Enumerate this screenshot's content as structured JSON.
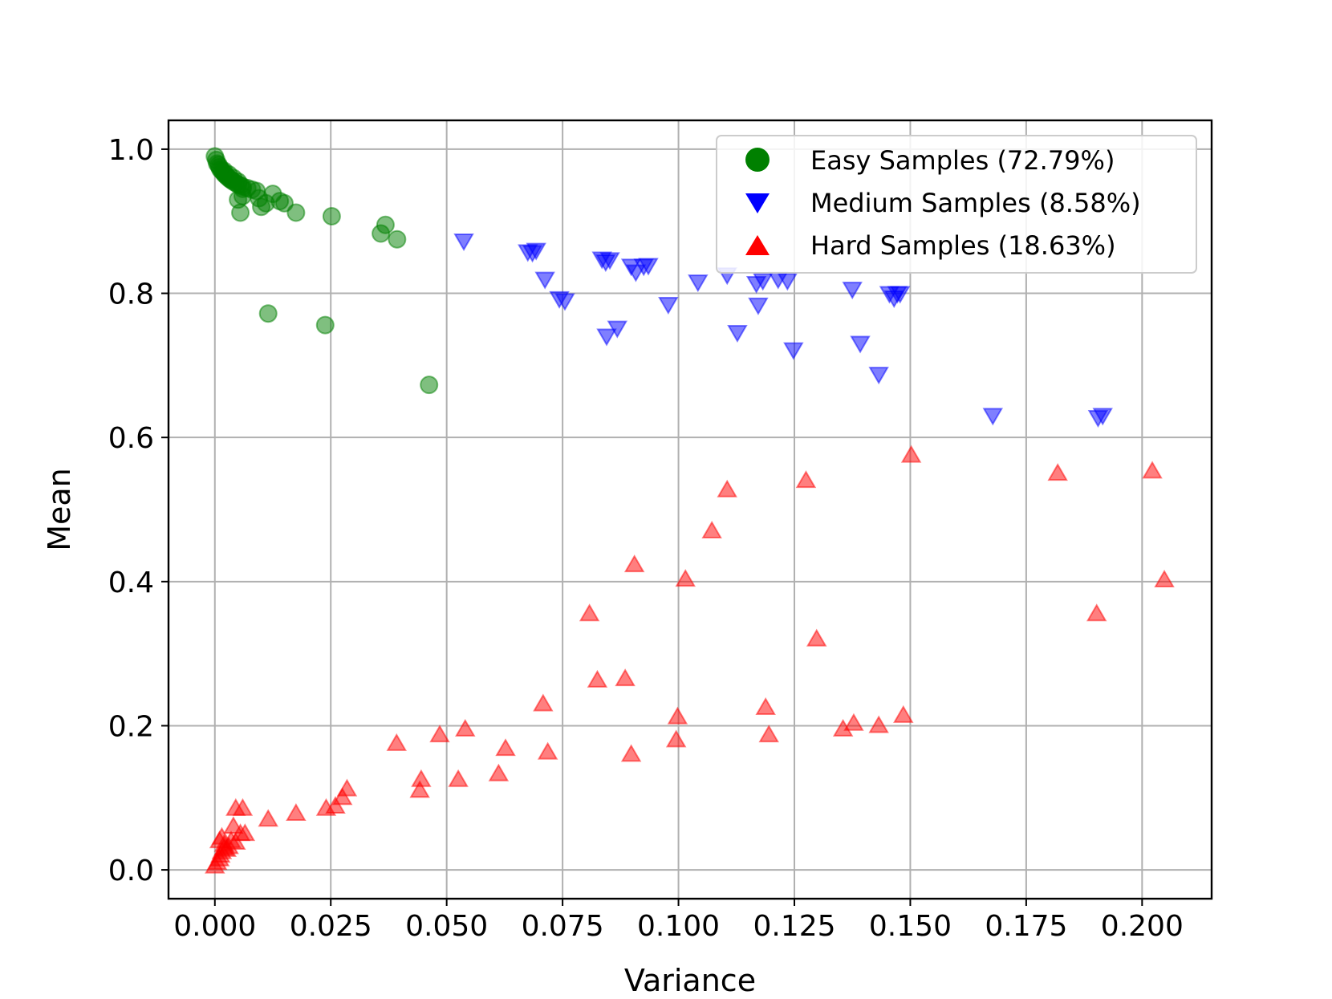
{
  "chart_data": {
    "type": "scatter",
    "title": "",
    "xlabel": "Variance",
    "ylabel": "Mean",
    "xlim": [
      -0.01,
      0.215
    ],
    "ylim": [
      -0.04,
      1.04
    ],
    "xticks": [
      "0.000",
      "0.025",
      "0.050",
      "0.075",
      "0.100",
      "0.125",
      "0.150",
      "0.175",
      "0.200"
    ],
    "xtick_values": [
      0,
      0.025,
      0.05,
      0.075,
      0.1,
      0.125,
      0.15,
      0.175,
      0.2
    ],
    "yticks": [
      "0.0",
      "0.2",
      "0.4",
      "0.6",
      "0.8",
      "1.0"
    ],
    "ytick_values": [
      0,
      0.2,
      0.4,
      0.6,
      0.8,
      1.0
    ],
    "grid": true,
    "legend_position": "top-right",
    "series": [
      {
        "name": "Easy Samples (72.79%)",
        "marker": "circle",
        "color": "#008000",
        "points": [
          [
            0.0,
            0.99
          ],
          [
            0.0003,
            0.985
          ],
          [
            0.0005,
            0.98
          ],
          [
            0.0008,
            0.978
          ],
          [
            0.001,
            0.975
          ],
          [
            0.0012,
            0.972
          ],
          [
            0.0015,
            0.97
          ],
          [
            0.0018,
            0.968
          ],
          [
            0.002,
            0.966
          ],
          [
            0.0023,
            0.964
          ],
          [
            0.0026,
            0.962
          ],
          [
            0.003,
            0.96
          ],
          [
            0.0033,
            0.958
          ],
          [
            0.0036,
            0.957
          ],
          [
            0.004,
            0.955
          ],
          [
            0.0045,
            0.953
          ],
          [
            0.005,
            0.951
          ],
          [
            0.0055,
            0.95
          ],
          [
            0.006,
            0.948
          ],
          [
            0.007,
            0.946
          ],
          [
            0.008,
            0.944
          ],
          [
            0.009,
            0.942
          ],
          [
            0.002,
            0.97
          ],
          [
            0.003,
            0.965
          ],
          [
            0.004,
            0.96
          ],
          [
            0.005,
            0.955
          ],
          [
            0.006,
            0.945
          ],
          [
            0.005,
            0.93
          ],
          [
            0.006,
            0.935
          ],
          [
            0.0055,
            0.912
          ],
          [
            0.0095,
            0.932
          ],
          [
            0.01,
            0.92
          ],
          [
            0.011,
            0.925
          ],
          [
            0.0125,
            0.938
          ],
          [
            0.014,
            0.928
          ],
          [
            0.015,
            0.925
          ],
          [
            0.0175,
            0.912
          ],
          [
            0.0252,
            0.907
          ],
          [
            0.0358,
            0.883
          ],
          [
            0.0368,
            0.895
          ],
          [
            0.0393,
            0.875
          ],
          [
            0.0115,
            0.772
          ],
          [
            0.0238,
            0.756
          ],
          [
            0.0462,
            0.673
          ]
        ]
      },
      {
        "name": "Medium Samples (8.58%)",
        "marker": "triangle-down",
        "color": "#0000ff",
        "points": [
          [
            0.0537,
            0.873
          ],
          [
            0.0675,
            0.858
          ],
          [
            0.0685,
            0.857
          ],
          [
            0.0693,
            0.86
          ],
          [
            0.0712,
            0.82
          ],
          [
            0.0743,
            0.793
          ],
          [
            0.0755,
            0.79
          ],
          [
            0.0835,
            0.848
          ],
          [
            0.0843,
            0.844
          ],
          [
            0.0852,
            0.847
          ],
          [
            0.0845,
            0.741
          ],
          [
            0.0868,
            0.752
          ],
          [
            0.0898,
            0.838
          ],
          [
            0.0908,
            0.83
          ],
          [
            0.0925,
            0.838
          ],
          [
            0.0935,
            0.839
          ],
          [
            0.0978,
            0.785
          ],
          [
            0.1042,
            0.816
          ],
          [
            0.1105,
            0.826
          ],
          [
            0.1127,
            0.746
          ],
          [
            0.1168,
            0.814
          ],
          [
            0.1172,
            0.784
          ],
          [
            0.1182,
            0.818
          ],
          [
            0.1215,
            0.82
          ],
          [
            0.1235,
            0.818
          ],
          [
            0.1248,
            0.722
          ],
          [
            0.1375,
            0.806
          ],
          [
            0.1392,
            0.731
          ],
          [
            0.1432,
            0.688
          ],
          [
            0.1455,
            0.8
          ],
          [
            0.1465,
            0.794
          ],
          [
            0.1472,
            0.8
          ],
          [
            0.1478,
            0.8
          ],
          [
            0.1678,
            0.631
          ],
          [
            0.1905,
            0.628
          ],
          [
            0.1915,
            0.631
          ]
        ]
      },
      {
        "name": "Hard Samples (18.63%)",
        "marker": "triangle-up",
        "color": "#ff0000",
        "points": [
          [
            0.0,
            0.005
          ],
          [
            0.0005,
            0.01
          ],
          [
            0.001,
            0.015
          ],
          [
            0.0012,
            0.02
          ],
          [
            0.0015,
            0.025
          ],
          [
            0.002,
            0.03
          ],
          [
            0.0025,
            0.028
          ],
          [
            0.003,
            0.032
          ],
          [
            0.001,
            0.04
          ],
          [
            0.0015,
            0.045
          ],
          [
            0.002,
            0.035
          ],
          [
            0.0035,
            0.04
          ],
          [
            0.0045,
            0.038
          ],
          [
            0.004,
            0.06
          ],
          [
            0.0045,
            0.085
          ],
          [
            0.006,
            0.085
          ],
          [
            0.0055,
            0.05
          ],
          [
            0.0065,
            0.05
          ],
          [
            0.0115,
            0.07
          ],
          [
            0.0175,
            0.078
          ],
          [
            0.024,
            0.085
          ],
          [
            0.026,
            0.088
          ],
          [
            0.0275,
            0.1
          ],
          [
            0.0285,
            0.112
          ],
          [
            0.0392,
            0.175
          ],
          [
            0.0442,
            0.11
          ],
          [
            0.0445,
            0.125
          ],
          [
            0.0485,
            0.187
          ],
          [
            0.0525,
            0.125
          ],
          [
            0.054,
            0.195
          ],
          [
            0.0612,
            0.133
          ],
          [
            0.0627,
            0.168
          ],
          [
            0.0708,
            0.23
          ],
          [
            0.0718,
            0.163
          ],
          [
            0.0808,
            0.355
          ],
          [
            0.0825,
            0.263
          ],
          [
            0.0885,
            0.265
          ],
          [
            0.0898,
            0.16
          ],
          [
            0.0905,
            0.423
          ],
          [
            0.0995,
            0.18
          ],
          [
            0.0998,
            0.212
          ],
          [
            0.1015,
            0.403
          ],
          [
            0.1072,
            0.47
          ],
          [
            0.1105,
            0.527
          ],
          [
            0.1188,
            0.225
          ],
          [
            0.1195,
            0.187
          ],
          [
            0.1275,
            0.54
          ],
          [
            0.1298,
            0.32
          ],
          [
            0.1355,
            0.195
          ],
          [
            0.1378,
            0.203
          ],
          [
            0.1432,
            0.2
          ],
          [
            0.1485,
            0.214
          ],
          [
            0.1502,
            0.575
          ],
          [
            0.1818,
            0.55
          ],
          [
            0.1902,
            0.355
          ],
          [
            0.2022,
            0.553
          ],
          [
            0.2048,
            0.402
          ]
        ]
      }
    ]
  }
}
